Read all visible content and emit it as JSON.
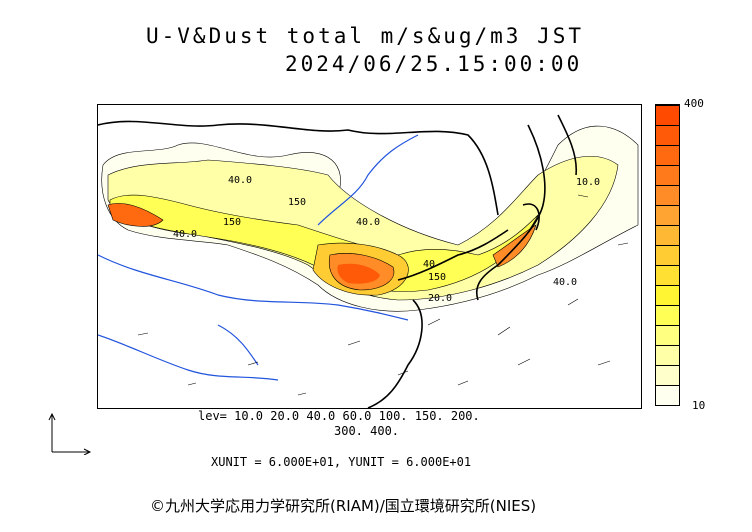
{
  "title": {
    "line1": "U-V&Dust total m/s&ug/m3 JST",
    "line2": "2024/06/25.15:00:00"
  },
  "colorbar": {
    "max_label": "400",
    "min_label": "10",
    "colors": [
      "#fffff0",
      "#ffffcc",
      "#ffffa8",
      "#ffff80",
      "#ffff55",
      "#fff533",
      "#ffe033",
      "#ffcc33",
      "#ffb833",
      "#ffa333",
      "#ff8c26",
      "#ff7a1a",
      "#ff6a10",
      "#ff5a08",
      "#ff4a00"
    ]
  },
  "levels": {
    "line1": "lev= 10.0 20.0 40.0 60.0 100. 150. 200.",
    "line2": "300. 400."
  },
  "units": {
    "text": "XUNIT = 6.000E+01, YUNIT = 6.000E+01"
  },
  "contour_labels": [
    "40.0",
    "40.0",
    "150",
    "150",
    "40.0",
    "40",
    "20.0",
    "150",
    "40.0",
    "10.0"
  ],
  "copyright": "©九州大学応用力学研究所(RIAM)/国立環境研究所(NIES)"
}
